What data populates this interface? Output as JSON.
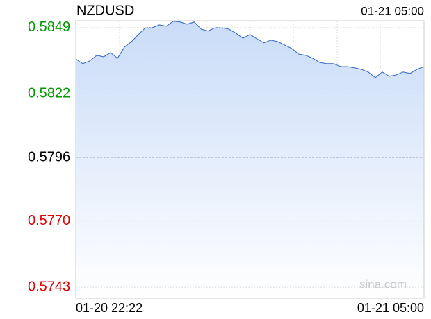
{
  "chart_data": {
    "type": "line",
    "title": "NZDUSD",
    "time": "01-21 05:00",
    "watermark": "sina.com",
    "categories": [
      "01-20 22:22",
      null,
      null,
      null,
      null,
      null,
      null,
      null,
      null,
      null,
      null,
      null,
      null,
      null,
      null,
      null,
      null,
      null,
      null,
      null,
      null,
      null,
      null,
      null,
      null,
      null,
      null,
      null,
      null,
      null,
      null,
      null,
      null,
      null,
      null,
      null,
      null,
      null,
      null,
      null,
      null,
      null,
      null,
      null,
      null,
      null,
      null,
      null,
      null,
      null,
      "01-21 05:00"
    ],
    "series": [
      {
        "name": "NZDUSD",
        "color": "#3a6cc4",
        "values": [
          0.58362,
          0.58343,
          0.58354,
          0.58377,
          0.58371,
          0.58388,
          0.58365,
          0.58411,
          0.58433,
          0.58462,
          0.5849,
          0.5849,
          0.58501,
          0.58496,
          0.58516,
          0.58513,
          0.58504,
          0.58513,
          0.58484,
          0.58476,
          0.5849,
          0.5849,
          0.58484,
          0.58467,
          0.58447,
          0.58462,
          0.58445,
          0.58428,
          0.58439,
          0.58433,
          0.58419,
          0.58405,
          0.58382,
          0.58377,
          0.58365,
          0.58348,
          0.58343,
          0.58343,
          0.58331,
          0.58331,
          0.58326,
          0.5832,
          0.58309,
          0.58286,
          0.58309,
          0.58292,
          0.58297,
          0.58309,
          0.58303,
          0.5832,
          0.58331
        ]
      }
    ],
    "ylim": [
      0.57385,
      0.58518
    ],
    "yticks": [
      0.5849,
      0.5822,
      0.5796,
      {
        "value": 0.577,
        "label": "0.5770"
      },
      0.5743
    ],
    "ytick_colors": [
      "#009900",
      "#009900",
      "#000000",
      "#e00000",
      "#e00000"
    ],
    "area_color": "#c9dcf8",
    "grid": true
  }
}
